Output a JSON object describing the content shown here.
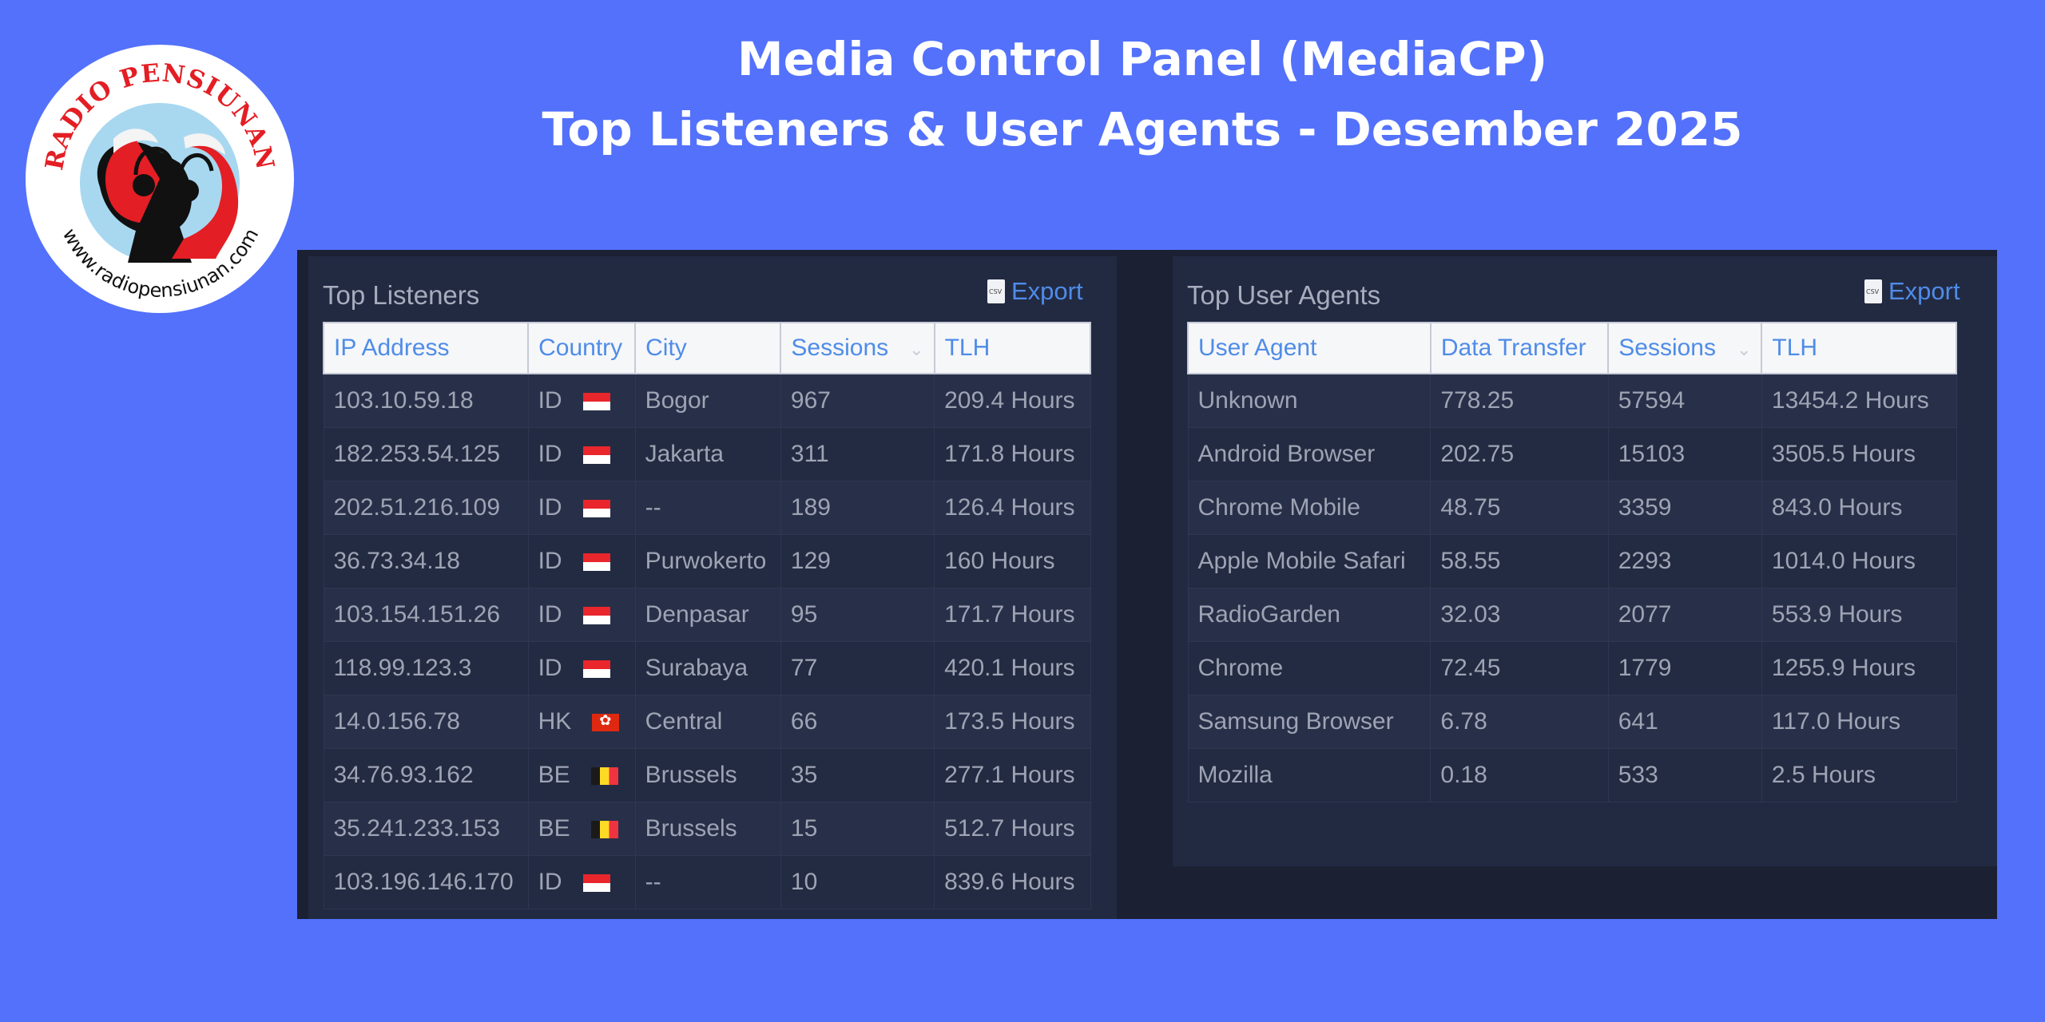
{
  "header": {
    "title_line1": "Media Control Panel (MediaCP)",
    "title_line2": "Top Listeners & User Agents - Desember 2025"
  },
  "logo": {
    "arc_text": "RADIO PENSIUNAN",
    "url_text": "www.radiopensiunan.com",
    "colors": {
      "red": "#e31e24",
      "sky": "#a8d8f0",
      "black": "#111111"
    }
  },
  "top_listeners": {
    "title": "Top Listeners",
    "export_label": "Export",
    "columns": [
      "IP Address",
      "Country",
      "City",
      "Sessions",
      "TLH"
    ],
    "rows": [
      {
        "ip": "103.10.59.18",
        "country": "ID",
        "flag": "flag-indonesia-icon",
        "city": "Bogor",
        "sessions": "967",
        "tlh": "209.4 Hours"
      },
      {
        "ip": "182.253.54.125",
        "country": "ID",
        "flag": "flag-indonesia-icon",
        "city": "Jakarta",
        "sessions": "311",
        "tlh": "171.8 Hours"
      },
      {
        "ip": "202.51.216.109",
        "country": "ID",
        "flag": "flag-indonesia-icon",
        "city": "--",
        "sessions": "189",
        "tlh": "126.4 Hours"
      },
      {
        "ip": "36.73.34.18",
        "country": "ID",
        "flag": "flag-indonesia-icon",
        "city": "Purwokerto",
        "sessions": "129",
        "tlh": "160 Hours"
      },
      {
        "ip": "103.154.151.26",
        "country": "ID",
        "flag": "flag-indonesia-icon",
        "city": "Denpasar",
        "sessions": "95",
        "tlh": "171.7 Hours"
      },
      {
        "ip": "118.99.123.3",
        "country": "ID",
        "flag": "flag-indonesia-icon",
        "city": "Surabaya",
        "sessions": "77",
        "tlh": "420.1 Hours"
      },
      {
        "ip": "14.0.156.78",
        "country": "HK",
        "flag": "flag-hongkong-icon",
        "city": "Central",
        "sessions": "66",
        "tlh": "173.5 Hours"
      },
      {
        "ip": "34.76.93.162",
        "country": "BE",
        "flag": "flag-belgium-icon",
        "city": "Brussels",
        "sessions": "35",
        "tlh": "277.1 Hours"
      },
      {
        "ip": "35.241.233.153",
        "country": "BE",
        "flag": "flag-belgium-icon",
        "city": "Brussels",
        "sessions": "15",
        "tlh": "512.7 Hours"
      },
      {
        "ip": "103.196.146.170",
        "country": "ID",
        "flag": "flag-indonesia-icon",
        "city": "--",
        "sessions": "10",
        "tlh": "839.6 Hours"
      }
    ]
  },
  "top_user_agents": {
    "title": "Top User Agents",
    "export_label": "Export",
    "columns": [
      "User Agent",
      "Data Transfer",
      "Sessions",
      "TLH"
    ],
    "rows": [
      {
        "agent": "Unknown",
        "transfer": "778.25",
        "sessions": "57594",
        "tlh": "13454.2 Hours"
      },
      {
        "agent": "Android Browser",
        "transfer": "202.75",
        "sessions": "15103",
        "tlh": "3505.5 Hours"
      },
      {
        "agent": "Chrome Mobile",
        "transfer": "48.75",
        "sessions": "3359",
        "tlh": "843.0 Hours"
      },
      {
        "agent": "Apple Mobile Safari",
        "transfer": "58.55",
        "sessions": "2293",
        "tlh": "1014.0 Hours"
      },
      {
        "agent": "RadioGarden",
        "transfer": "32.03",
        "sessions": "2077",
        "tlh": "553.9 Hours"
      },
      {
        "agent": "Chrome",
        "transfer": "72.45",
        "sessions": "1779",
        "tlh": "1255.9 Hours"
      },
      {
        "agent": "Samsung Browser",
        "transfer": "6.78",
        "sessions": "641",
        "tlh": "117.0 Hours"
      },
      {
        "agent": "Mozilla",
        "transfer": "0.18",
        "sessions": "533",
        "tlh": "2.5 Hours"
      }
    ]
  },
  "colors": {
    "background": "#5371fb",
    "panel": "#222a42",
    "link": "#4f8ce8"
  }
}
